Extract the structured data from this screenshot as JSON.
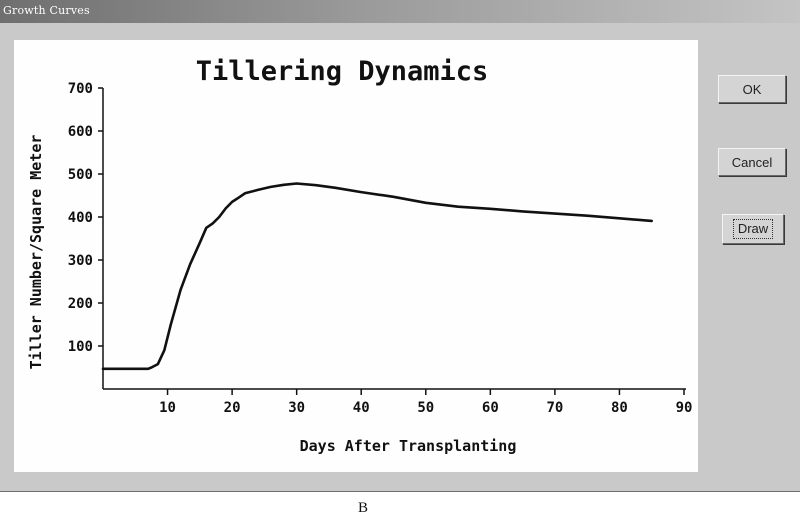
{
  "window": {
    "title": "Growth Curves"
  },
  "buttons": {
    "ok_label": "OK",
    "cancel_label": "Cancel",
    "draw_label": "Draw"
  },
  "caption": "B",
  "chart_data": {
    "type": "line",
    "title": "Tillering Dynamics",
    "xlabel": "Days After Transplanting",
    "ylabel": "Tiller Number/Square Meter",
    "xlim": [
      0,
      90
    ],
    "ylim": [
      0,
      700
    ],
    "xticks": [
      10,
      20,
      30,
      40,
      50,
      60,
      70,
      80,
      90
    ],
    "yticks": [
      100,
      200,
      300,
      400,
      500,
      600,
      700
    ],
    "grid": false,
    "series": [
      {
        "x": [
          0,
          7,
          7.5,
          8.5,
          9.5,
          10.5,
          12,
          13.5,
          15,
          16,
          17,
          18,
          19,
          20,
          21,
          22,
          24,
          26,
          28,
          30,
          33,
          36,
          40,
          45,
          50,
          55,
          60,
          65,
          70,
          75,
          80,
          85
        ],
        "y": [
          47,
          47,
          50,
          58,
          90,
          150,
          230,
          290,
          340,
          375,
          385,
          400,
          420,
          435,
          445,
          455,
          463,
          470,
          475,
          478,
          474,
          468,
          458,
          447,
          433,
          424,
          419,
          413,
          408,
          403,
          397,
          391
        ]
      }
    ],
    "colors": {
      "line": "#111111"
    }
  }
}
